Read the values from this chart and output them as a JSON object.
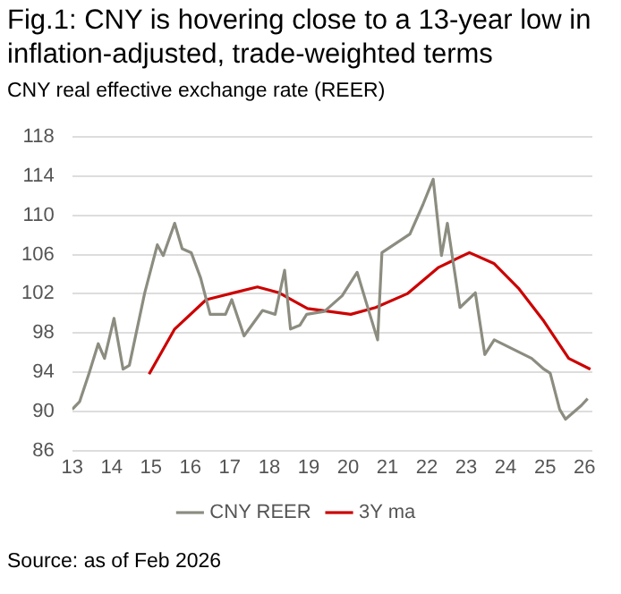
{
  "chart_data": {
    "type": "line",
    "title": "Fig.1: CNY is hovering close to a 13-year low in inflation-adjusted, trade-weighted terms",
    "subtitle": "CNY real effective exchange rate (REER)",
    "xlim": [
      13,
      26.2
    ],
    "xticks": [
      13,
      14,
      15,
      16,
      17,
      18,
      19,
      20,
      21,
      22,
      23,
      24,
      25,
      26
    ],
    "ylim": [
      86,
      118
    ],
    "yticks": [
      86,
      90,
      94,
      98,
      102,
      106,
      110,
      114,
      118
    ],
    "grid": "y",
    "legend": "bottom",
    "marker": "none",
    "line_style": "solid",
    "series": [
      {
        "name": "CNY REER",
        "color": "#8c8c80",
        "x": [
          13.0,
          13.19,
          13.43,
          13.66,
          13.82,
          14.06,
          14.29,
          14.45,
          14.84,
          15.16,
          15.31,
          15.6,
          15.79,
          16.02,
          16.26,
          16.5,
          16.89,
          17.05,
          17.36,
          17.83,
          18.15,
          18.39,
          18.54,
          18.78,
          18.95,
          19.4,
          19.85,
          20.23,
          20.47,
          20.75,
          20.86,
          21.57,
          21.9,
          22.16,
          22.37,
          22.52,
          22.84,
          23.23,
          23.47,
          23.71,
          24.66,
          24.97,
          25.13,
          25.37,
          25.52,
          25.92,
          26.08
        ],
        "values": [
          90.2,
          91,
          93.9,
          96.9,
          95.4,
          99.5,
          94.3,
          94.7,
          102.1,
          107,
          105.9,
          109.2,
          106.6,
          106.2,
          103.6,
          99.9,
          99.9,
          101.4,
          97.7,
          100.3,
          99.9,
          104.4,
          98.4,
          98.8,
          99.9,
          100.2,
          101.8,
          104.2,
          101,
          97.3,
          106.2,
          108.1,
          111.1,
          113.7,
          105.9,
          109.2,
          100.6,
          102.1,
          95.8,
          97.3,
          95.4,
          94.3,
          93.9,
          90.2,
          89.2,
          90.6,
          91.3
        ]
      },
      {
        "name": "3Y ma",
        "color": "#cc0000",
        "x": [
          14.95,
          15.6,
          16.4,
          17.0,
          17.7,
          18.25,
          18.97,
          20.07,
          20.7,
          21.5,
          22.3,
          23.08,
          23.7,
          24.34,
          24.97,
          25.6,
          26.15
        ],
        "values": [
          93.8,
          98.4,
          101.4,
          102,
          102.7,
          102.1,
          100.5,
          99.9,
          100.6,
          102,
          104.7,
          106.2,
          105.1,
          102.5,
          99.2,
          95.4,
          94.3
        ]
      }
    ],
    "annotations": [
      "Source: as of Feb 2026"
    ]
  }
}
